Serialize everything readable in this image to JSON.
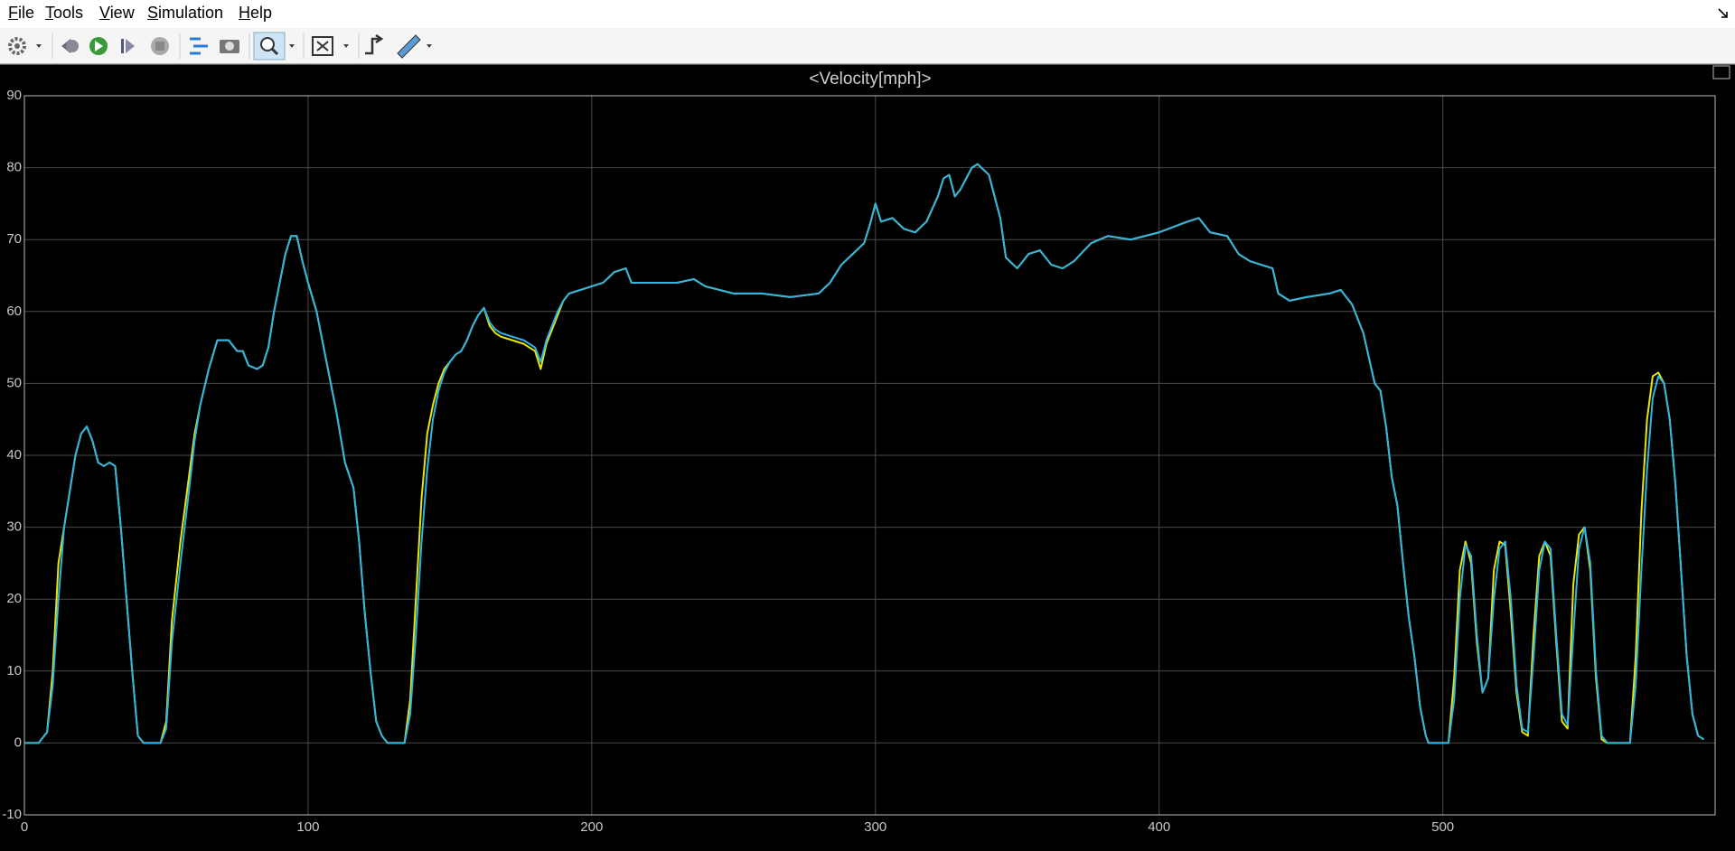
{
  "menu": [
    "File",
    "Tools",
    "View",
    "Simulation",
    "Help"
  ],
  "chart_data": {
    "type": "line",
    "title": "<Velocity[mph]>",
    "x": [
      0,
      5,
      8,
      10,
      12,
      14,
      16,
      18,
      20,
      22,
      24,
      26,
      28,
      30,
      32,
      34,
      36,
      38,
      40,
      42,
      48,
      50,
      52,
      55,
      58,
      60,
      62,
      65,
      68,
      70,
      72,
      75,
      77,
      79,
      82,
      84,
      86,
      88,
      90,
      92,
      94,
      96,
      98,
      100,
      103,
      106,
      110,
      113,
      116,
      118,
      120,
      122,
      124,
      126,
      128,
      134,
      136,
      138,
      140,
      142,
      144,
      146,
      148,
      150,
      152,
      154,
      156,
      158,
      160,
      162,
      164,
      166,
      168,
      172,
      176,
      180,
      182,
      184,
      186,
      188,
      190,
      192,
      196,
      200,
      204,
      208,
      212,
      214,
      220,
      230,
      236,
      240,
      250,
      260,
      270,
      280,
      284,
      288,
      292,
      296,
      298,
      300,
      302,
      306,
      310,
      314,
      318,
      322,
      324,
      326,
      328,
      330,
      334,
      336,
      340,
      344,
      346,
      350,
      354,
      358,
      362,
      366,
      370,
      376,
      382,
      390,
      400,
      410,
      414,
      418,
      424,
      428,
      432,
      436,
      440,
      442,
      446,
      452,
      460,
      464,
      468,
      472,
      476,
      478,
      480,
      482,
      484,
      486,
      488,
      490,
      492,
      494,
      495,
      502,
      504,
      506,
      508,
      510,
      512,
      514,
      516,
      518,
      520,
      522,
      524,
      526,
      528,
      530,
      532,
      534,
      536,
      538,
      540,
      542,
      544,
      546,
      548,
      550,
      552,
      554,
      556,
      558,
      566,
      568,
      570,
      572,
      574,
      576,
      578,
      580,
      582,
      584,
      586,
      588,
      590,
      592
    ],
    "series": [
      {
        "color": "#e8e800",
        "values": [
          0,
          0,
          1.5,
          10,
          25,
          30,
          35,
          40,
          43,
          44,
          42,
          39,
          38.5,
          39,
          38.5,
          30,
          20,
          10,
          1,
          0,
          0,
          3,
          17,
          28,
          37,
          43,
          47,
          52,
          56,
          56,
          56,
          54.5,
          54.5,
          52.5,
          52,
          52.5,
          55,
          60,
          64,
          68,
          70.5,
          70.5,
          67,
          64,
          60,
          54,
          46,
          39,
          35.5,
          28,
          18,
          10,
          3,
          1,
          0,
          0,
          6,
          20,
          34,
          43,
          47,
          50,
          52,
          53,
          54,
          54.5,
          56,
          58,
          59.5,
          60.5,
          58,
          57,
          56.5,
          56,
          55.5,
          54.5,
          52,
          55.5,
          57.5,
          59.5,
          61.5,
          62.5,
          63,
          63.5,
          64,
          65.5,
          66,
          64,
          64,
          64,
          64.5,
          63.5,
          62.5,
          62.5,
          62,
          62.5,
          64,
          66.5,
          68,
          69.5,
          72,
          75,
          72.5,
          73,
          71.5,
          71,
          72.5,
          76,
          78.5,
          79,
          76,
          77,
          80,
          80.5,
          79,
          73,
          67.5,
          66,
          68,
          68.5,
          66.5,
          66,
          67,
          69.5,
          70.5,
          70,
          71,
          72.5,
          73,
          71,
          70.5,
          68,
          67,
          66.5,
          66,
          62.5,
          61.5,
          62,
          62.5,
          63,
          61,
          57,
          50,
          49,
          44,
          37,
          33,
          25,
          17.5,
          12,
          5,
          1,
          0,
          0,
          9,
          24,
          28,
          25,
          14,
          7,
          9,
          24,
          28,
          27.5,
          18,
          7,
          1.5,
          1,
          15,
          26,
          28,
          26,
          14,
          3,
          2,
          22,
          29,
          30,
          24,
          9,
          0.5,
          0,
          0,
          12,
          32,
          45,
          51,
          51.5,
          50,
          45,
          36,
          24,
          12,
          4,
          1,
          0.5
        ]
      },
      {
        "color": "#30b4e6",
        "values": [
          0,
          0,
          1.5,
          8,
          20,
          30,
          35,
          40,
          43,
          44,
          42,
          39,
          38.5,
          39,
          38.5,
          30,
          20,
          10,
          1,
          0,
          0,
          2,
          14,
          25,
          35,
          42,
          47,
          52,
          56,
          56,
          56,
          54.5,
          54.5,
          52.5,
          52,
          52.5,
          55,
          60,
          64,
          68,
          70.5,
          70.5,
          67,
          64,
          60,
          54,
          46,
          39,
          35.5,
          28,
          18,
          10,
          3,
          1,
          0,
          0,
          4,
          15,
          28,
          38,
          45,
          49,
          51.5,
          53,
          54,
          54.5,
          56,
          58,
          59.5,
          60.5,
          58.5,
          57.5,
          57,
          56.5,
          56,
          55,
          53,
          56,
          58,
          60,
          61.5,
          62.5,
          63,
          63.5,
          64,
          65.5,
          66,
          64,
          64,
          64,
          64.5,
          63.5,
          62.5,
          62.5,
          62,
          62.5,
          64,
          66.5,
          68,
          69.5,
          72,
          75,
          72.5,
          73,
          71.5,
          71,
          72.5,
          76,
          78.5,
          79,
          76,
          77,
          80,
          80.5,
          79,
          73,
          67.5,
          66,
          68,
          68.5,
          66.5,
          66,
          67,
          69.5,
          70.5,
          70,
          71,
          72.5,
          73,
          71,
          70.5,
          68,
          67,
          66.5,
          66,
          62.5,
          61.5,
          62,
          62.5,
          63,
          61,
          57,
          50,
          49,
          44,
          37,
          33,
          25,
          17.5,
          12,
          5,
          1,
          0,
          0,
          6,
          20,
          27.5,
          26,
          15,
          7,
          9,
          20,
          27,
          28,
          20,
          8,
          2,
          1.5,
          12,
          24,
          28,
          27,
          15,
          4,
          2.5,
          15,
          27,
          30,
          25,
          10,
          1,
          0,
          0,
          8,
          24,
          38,
          48,
          51,
          50,
          45,
          36,
          24,
          12,
          4,
          1,
          0.5
        ]
      }
    ],
    "xlim": [
      0,
      596
    ],
    "ylim": [
      -10,
      90
    ],
    "xticks": [
      0,
      100,
      200,
      300,
      400,
      500
    ],
    "yticks": [
      -10,
      0,
      10,
      20,
      30,
      40,
      50,
      60,
      70,
      80,
      90
    ],
    "grid": true
  }
}
